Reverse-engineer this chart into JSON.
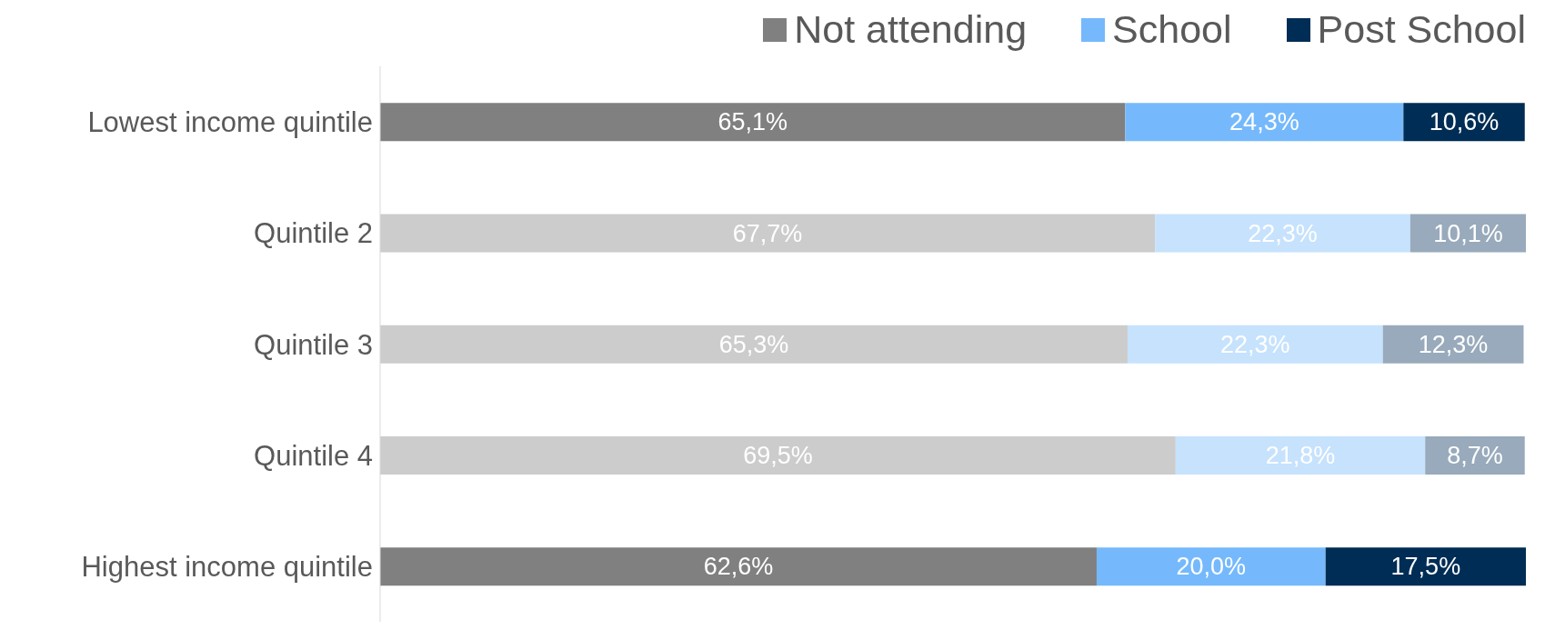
{
  "chart_data": {
    "type": "bar",
    "orientation": "horizontal",
    "stacked": true,
    "categories": [
      "Lowest income quintile",
      "Quintile 2",
      "Quintile 3",
      "Quintile 4",
      "Highest income quintile"
    ],
    "series": [
      {
        "name": "Not attending",
        "color": "#808080",
        "colors": [
          "#808080",
          "#cccccc",
          "#cccccc",
          "#cccccc",
          "#808080"
        ],
        "values": [
          65.1,
          67.7,
          65.3,
          69.5,
          62.6
        ],
        "value_labels": [
          "65,1%",
          "67,7%",
          "65,3%",
          "69,5%",
          "62,6%"
        ]
      },
      {
        "name": "School",
        "color": "#75b9fc",
        "colors": [
          "#75b9fc",
          "#c6e2fd",
          "#c6e2fd",
          "#c6e2fd",
          "#75b9fc"
        ],
        "values": [
          24.3,
          22.3,
          22.3,
          21.8,
          20.0
        ],
        "value_labels": [
          "24,3%",
          "22,3%",
          "22,3%",
          "21,8%",
          "20,0%"
        ]
      },
      {
        "name": "Post School",
        "color": "#002d55",
        "colors": [
          "#002d55",
          "#98aabb",
          "#98aabb",
          "#98aabb",
          "#002d55"
        ],
        "values": [
          10.6,
          10.1,
          12.3,
          8.7,
          17.5
        ],
        "value_labels": [
          "10,6%",
          "10,1%",
          "12,3%",
          "8,7%",
          "17,5%"
        ]
      }
    ],
    "legend": "top right",
    "grid": false,
    "tick_labels": "y"
  }
}
